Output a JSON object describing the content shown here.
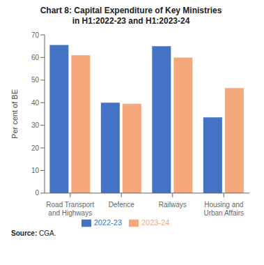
{
  "chart_data": {
    "type": "bar",
    "title": "Chart 8: Capital Expenditure of Key Ministries\nin H1:2022-23 and H1:2023-24",
    "categories": [
      "Road Transport\nand Highways",
      "Defence",
      "Railways",
      "Housing and\nUrban Affairs"
    ],
    "series": [
      {
        "name": "2022-23",
        "color": "#4472C4",
        "values": [
          65.5,
          40.0,
          65.0,
          33.5
        ]
      },
      {
        "name": "2023-24",
        "color": "#F4A87C",
        "values": [
          61.0,
          39.5,
          60.0,
          46.5
        ]
      }
    ],
    "ylabel": "Per cent of BE",
    "ylim": [
      0,
      70
    ],
    "yticks": [
      0,
      10,
      20,
      30,
      40,
      50,
      60,
      70
    ],
    "grid": false,
    "legend": "bottom",
    "annotations": [
      "Source:",
      "CGA."
    ]
  }
}
